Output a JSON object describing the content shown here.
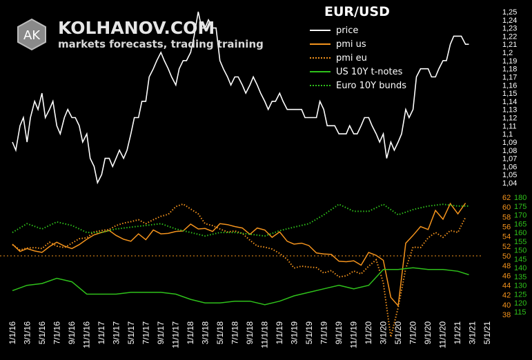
{
  "brand": {
    "name": "KOLHANOV.COM",
    "tagline": "markets forecasts, trading training",
    "logo_text": "AK"
  },
  "chart_data": [
    {
      "type": "line",
      "title": "EUR/USD",
      "y_ticks": [
        "1,25",
        "1,24",
        "1,23",
        "1,22",
        "1,21",
        "1,2",
        "1,19",
        "1,18",
        "1,17",
        "1,16",
        "1,15",
        "1,14",
        "1,13",
        "1,12",
        "1,11",
        "1,1",
        "1,09",
        "1,08",
        "1,07",
        "1,06",
        "1,05",
        "1,04"
      ],
      "ylim": [
        1.04,
        1.25
      ],
      "series": [
        {
          "name": "price",
          "color": "#ffffff",
          "style": "solid",
          "x": [
            "2016-01-01",
            "2016-01-15",
            "2016-02-01",
            "2016-02-15",
            "2016-03-01",
            "2016-03-15",
            "2016-04-01",
            "2016-04-15",
            "2016-05-01",
            "2016-05-15",
            "2016-06-01",
            "2016-06-15",
            "2016-07-01",
            "2016-07-15",
            "2016-08-01",
            "2016-08-15",
            "2016-09-01",
            "2016-09-15",
            "2016-10-01",
            "2016-10-15",
            "2016-11-01",
            "2016-11-15",
            "2016-12-01",
            "2016-12-15",
            "2017-01-01",
            "2017-01-15",
            "2017-02-01",
            "2017-02-15",
            "2017-03-01",
            "2017-03-15",
            "2017-04-01",
            "2017-04-15",
            "2017-05-01",
            "2017-05-15",
            "2017-06-01",
            "2017-06-15",
            "2017-07-01",
            "2017-07-15",
            "2017-08-01",
            "2017-08-15",
            "2017-09-01",
            "2017-09-15",
            "2017-10-01",
            "2017-10-15",
            "2017-11-01",
            "2017-11-15",
            "2017-12-01",
            "2017-12-15",
            "2018-01-01",
            "2018-01-15",
            "2018-02-01",
            "2018-02-15",
            "2018-03-01",
            "2018-03-15",
            "2018-04-01",
            "2018-04-15",
            "2018-05-01",
            "2018-05-15",
            "2018-06-01",
            "2018-06-15",
            "2018-07-01",
            "2018-07-15",
            "2018-08-01",
            "2018-08-15",
            "2018-09-01",
            "2018-09-15",
            "2018-10-01",
            "2018-10-15",
            "2018-11-01",
            "2018-11-15",
            "2018-12-01",
            "2018-12-15",
            "2019-01-01",
            "2019-01-15",
            "2019-02-01",
            "2019-02-15",
            "2019-03-01",
            "2019-03-15",
            "2019-04-01",
            "2019-04-15",
            "2019-05-01",
            "2019-05-15",
            "2019-06-01",
            "2019-06-15",
            "2019-07-01",
            "2019-07-15",
            "2019-08-01",
            "2019-08-15",
            "2019-09-01",
            "2019-09-15",
            "2019-10-01",
            "2019-10-15",
            "2019-11-01",
            "2019-11-15",
            "2019-12-01",
            "2019-12-15",
            "2020-01-01",
            "2020-01-15",
            "2020-02-01",
            "2020-02-15",
            "2020-03-01",
            "2020-03-15",
            "2020-04-01",
            "2020-04-15",
            "2020-05-01",
            "2020-05-15",
            "2020-06-01",
            "2020-06-15",
            "2020-07-01",
            "2020-07-15",
            "2020-08-01",
            "2020-08-15",
            "2020-09-01",
            "2020-09-15",
            "2020-10-01",
            "2020-10-15",
            "2020-11-01",
            "2020-11-15",
            "2020-12-01",
            "2020-12-15",
            "2021-01-01",
            "2021-01-15",
            "2021-02-01",
            "2021-02-15"
          ],
          "values": [
            1.09,
            1.08,
            1.11,
            1.12,
            1.09,
            1.12,
            1.14,
            1.13,
            1.15,
            1.12,
            1.13,
            1.14,
            1.11,
            1.1,
            1.12,
            1.13,
            1.12,
            1.12,
            1.11,
            1.09,
            1.1,
            1.07,
            1.06,
            1.04,
            1.05,
            1.07,
            1.07,
            1.06,
            1.07,
            1.08,
            1.07,
            1.08,
            1.1,
            1.12,
            1.12,
            1.14,
            1.14,
            1.17,
            1.18,
            1.19,
            1.2,
            1.19,
            1.18,
            1.17,
            1.16,
            1.18,
            1.19,
            1.19,
            1.2,
            1.22,
            1.25,
            1.23,
            1.23,
            1.24,
            1.23,
            1.23,
            1.19,
            1.18,
            1.17,
            1.16,
            1.17,
            1.17,
            1.16,
            1.15,
            1.16,
            1.17,
            1.16,
            1.15,
            1.14,
            1.13,
            1.14,
            1.14,
            1.15,
            1.14,
            1.13,
            1.13,
            1.13,
            1.13,
            1.13,
            1.12,
            1.12,
            1.12,
            1.12,
            1.14,
            1.13,
            1.11,
            1.11,
            1.11,
            1.1,
            1.1,
            1.1,
            1.11,
            1.1,
            1.1,
            1.11,
            1.12,
            1.12,
            1.11,
            1.1,
            1.09,
            1.1,
            1.07,
            1.09,
            1.08,
            1.09,
            1.1,
            1.13,
            1.12,
            1.13,
            1.17,
            1.18,
            1.18,
            1.18,
            1.17,
            1.17,
            1.18,
            1.19,
            1.19,
            1.21,
            1.22,
            1.22,
            1.22,
            1.21,
            1.21
          ]
        }
      ]
    },
    {
      "type": "line",
      "x_ticks": [
        "1/1/16",
        "3/1/16",
        "5/1/16",
        "7/1/16",
        "9/1/16",
        "11/1/16",
        "1/1/17",
        "3/1/17",
        "5/1/17",
        "7/1/17",
        "9/1/17",
        "11/1/17",
        "1/1/18",
        "3/1/18",
        "5/1/18",
        "7/1/18",
        "9/1/18",
        "11/1/18",
        "1/1/19",
        "3/1/19",
        "5/1/19",
        "7/1/19",
        "9/1/19",
        "11/1/19",
        "1/1/20",
        "3/1/20",
        "5/1/20",
        "7/1/20",
        "9/1/20",
        "11/1/20",
        "1/1/21",
        "3/1/21",
        "5/1/21"
      ],
      "y_ticks_left": [
        "62",
        "60",
        "58",
        "56",
        "54",
        "52",
        "50",
        "48",
        "46",
        "44",
        "42",
        "40",
        "38"
      ],
      "y_ticks_right": [
        "180",
        "175",
        "170",
        "165",
        "160",
        "155",
        "150",
        "145",
        "140",
        "135",
        "130",
        "125",
        "120",
        "115"
      ],
      "ylim_left": [
        38,
        62
      ],
      "ylim_right": [
        115,
        180
      ],
      "reference_line": 50,
      "series": [
        {
          "name": "pmi us",
          "color": "#f5941d",
          "style": "solid",
          "axis": "left",
          "x": [
            "2016-01-01",
            "2016-02-01",
            "2016-03-01",
            "2016-04-01",
            "2016-05-01",
            "2016-06-01",
            "2016-07-01",
            "2016-08-01",
            "2016-09-01",
            "2016-10-01",
            "2016-11-01",
            "2016-12-01",
            "2017-01-01",
            "2017-02-01",
            "2017-03-01",
            "2017-04-01",
            "2017-05-01",
            "2017-06-01",
            "2017-07-01",
            "2017-08-01",
            "2017-09-01",
            "2017-10-01",
            "2017-11-01",
            "2017-12-01",
            "2018-01-01",
            "2018-02-01",
            "2018-03-01",
            "2018-04-01",
            "2018-05-01",
            "2018-06-01",
            "2018-07-01",
            "2018-08-01",
            "2018-09-01",
            "2018-10-01",
            "2018-11-01",
            "2018-12-01",
            "2019-01-01",
            "2019-02-01",
            "2019-03-01",
            "2019-04-01",
            "2019-05-01",
            "2019-06-01",
            "2019-07-01",
            "2019-08-01",
            "2019-09-01",
            "2019-10-01",
            "2019-11-01",
            "2019-12-01",
            "2020-01-01",
            "2020-02-01",
            "2020-03-01",
            "2020-04-01",
            "2020-05-01",
            "2020-06-01",
            "2020-07-01",
            "2020-08-01",
            "2020-09-01",
            "2020-10-01",
            "2020-11-01",
            "2020-12-01",
            "2021-01-01",
            "2021-02-01"
          ],
          "values": [
            52.4,
            50.9,
            51.5,
            51.0,
            50.7,
            51.9,
            52.8,
            52.0,
            51.5,
            52.3,
            53.4,
            54.3,
            54.8,
            55.2,
            54.2,
            53.4,
            53.0,
            54.5,
            53.3,
            55.3,
            54.5,
            54.6,
            55.0,
            55.1,
            56.5,
            55.5,
            55.6,
            55.0,
            56.6,
            56.4,
            56.0,
            55.7,
            54.4,
            55.7,
            55.3,
            53.8,
            54.9,
            53.0,
            52.4,
            52.6,
            52.1,
            50.6,
            50.4,
            50.3,
            48.9,
            48.8,
            49.0,
            48.1,
            50.7,
            50.1,
            49.1,
            41.5,
            39.8,
            52.6,
            54.2,
            56.0,
            55.4,
            59.3,
            57.5,
            60.7,
            58.6,
            60.8
          ]
        },
        {
          "name": "pmi eu",
          "color": "#f5941d",
          "style": "dotted",
          "axis": "left",
          "x": [
            "2016-01-01",
            "2016-02-01",
            "2016-03-01",
            "2016-04-01",
            "2016-05-01",
            "2016-06-01",
            "2016-07-01",
            "2016-08-01",
            "2016-09-01",
            "2016-10-01",
            "2016-11-01",
            "2016-12-01",
            "2017-01-01",
            "2017-02-01",
            "2017-03-01",
            "2017-04-01",
            "2017-05-01",
            "2017-06-01",
            "2017-07-01",
            "2017-08-01",
            "2017-09-01",
            "2017-10-01",
            "2017-11-01",
            "2017-12-01",
            "2018-01-01",
            "2018-02-01",
            "2018-03-01",
            "2018-04-01",
            "2018-05-01",
            "2018-06-01",
            "2018-07-01",
            "2018-08-01",
            "2018-09-01",
            "2018-10-01",
            "2018-11-01",
            "2018-12-01",
            "2019-01-01",
            "2019-02-01",
            "2019-03-01",
            "2019-04-01",
            "2019-05-01",
            "2019-06-01",
            "2019-07-01",
            "2019-08-01",
            "2019-09-01",
            "2019-10-01",
            "2019-11-01",
            "2019-12-01",
            "2020-01-01",
            "2020-02-01",
            "2020-03-01",
            "2020-04-01",
            "2020-05-01",
            "2020-06-01",
            "2020-07-01",
            "2020-08-01",
            "2020-09-01",
            "2020-10-01",
            "2020-11-01",
            "2020-12-01",
            "2021-01-01",
            "2021-02-01"
          ],
          "values": [
            52.3,
            51.2,
            51.6,
            51.7,
            51.5,
            52.8,
            52.0,
            51.7,
            52.6,
            53.5,
            53.7,
            54.9,
            55.2,
            55.4,
            56.2,
            56.7,
            57.0,
            57.4,
            56.6,
            57.4,
            58.1,
            58.5,
            60.1,
            60.6,
            59.6,
            58.6,
            56.6,
            56.2,
            55.5,
            54.9,
            55.1,
            54.6,
            53.2,
            52.0,
            51.8,
            51.4,
            50.5,
            49.3,
            47.5,
            47.9,
            47.7,
            47.6,
            46.5,
            47.0,
            45.7,
            45.9,
            46.9,
            46.3,
            47.9,
            49.2,
            44.5,
            33.4,
            39.4,
            47.4,
            51.8,
            51.7,
            53.7,
            54.8,
            53.8,
            55.2,
            54.8,
            57.9
          ]
        },
        {
          "name": "US 10Y t-notes",
          "color": "#2fc21b",
          "style": "solid",
          "axis": "right",
          "x": [
            "2016-01-01",
            "2016-03-01",
            "2016-05-01",
            "2016-07-01",
            "2016-09-01",
            "2016-11-01",
            "2017-01-01",
            "2017-03-01",
            "2017-05-01",
            "2017-07-01",
            "2017-09-01",
            "2017-11-01",
            "2018-01-01",
            "2018-03-01",
            "2018-05-01",
            "2018-07-01",
            "2018-09-01",
            "2018-11-01",
            "2019-01-01",
            "2019-03-01",
            "2019-05-01",
            "2019-07-01",
            "2019-09-01",
            "2019-11-01",
            "2020-01-01",
            "2020-03-01",
            "2020-05-01",
            "2020-07-01",
            "2020-09-01",
            "2020-11-01",
            "2021-01-01",
            "2021-02-15"
          ],
          "values": [
            127,
            130,
            131,
            134,
            132,
            125,
            125,
            125,
            126,
            126,
            126,
            125,
            122,
            120,
            120,
            121,
            121,
            119,
            121,
            124,
            126,
            128,
            130,
            128,
            130,
            139,
            139,
            140,
            139,
            139,
            138,
            136
          ]
        },
        {
          "name": "Euro 10Y bunds",
          "color": "#2fc21b",
          "style": "dotted",
          "axis": "right",
          "x": [
            "2016-01-01",
            "2016-03-01",
            "2016-05-01",
            "2016-07-01",
            "2016-09-01",
            "2016-11-01",
            "2017-01-01",
            "2017-03-01",
            "2017-05-01",
            "2017-07-01",
            "2017-09-01",
            "2017-11-01",
            "2018-01-01",
            "2018-03-01",
            "2018-05-01",
            "2018-07-01",
            "2018-09-01",
            "2018-11-01",
            "2019-01-01",
            "2019-03-01",
            "2019-05-01",
            "2019-07-01",
            "2019-09-01",
            "2019-11-01",
            "2020-01-01",
            "2020-03-01",
            "2020-05-01",
            "2020-07-01",
            "2020-09-01",
            "2020-11-01",
            "2021-01-01",
            "2021-02-15"
          ],
          "values": [
            160,
            165,
            162,
            166,
            164,
            160,
            160,
            162,
            163,
            164,
            165,
            162,
            160,
            158,
            160,
            160,
            159,
            158,
            161,
            163,
            165,
            170,
            176,
            172,
            172,
            176,
            170,
            173,
            175,
            176,
            175,
            175
          ]
        }
      ]
    }
  ]
}
